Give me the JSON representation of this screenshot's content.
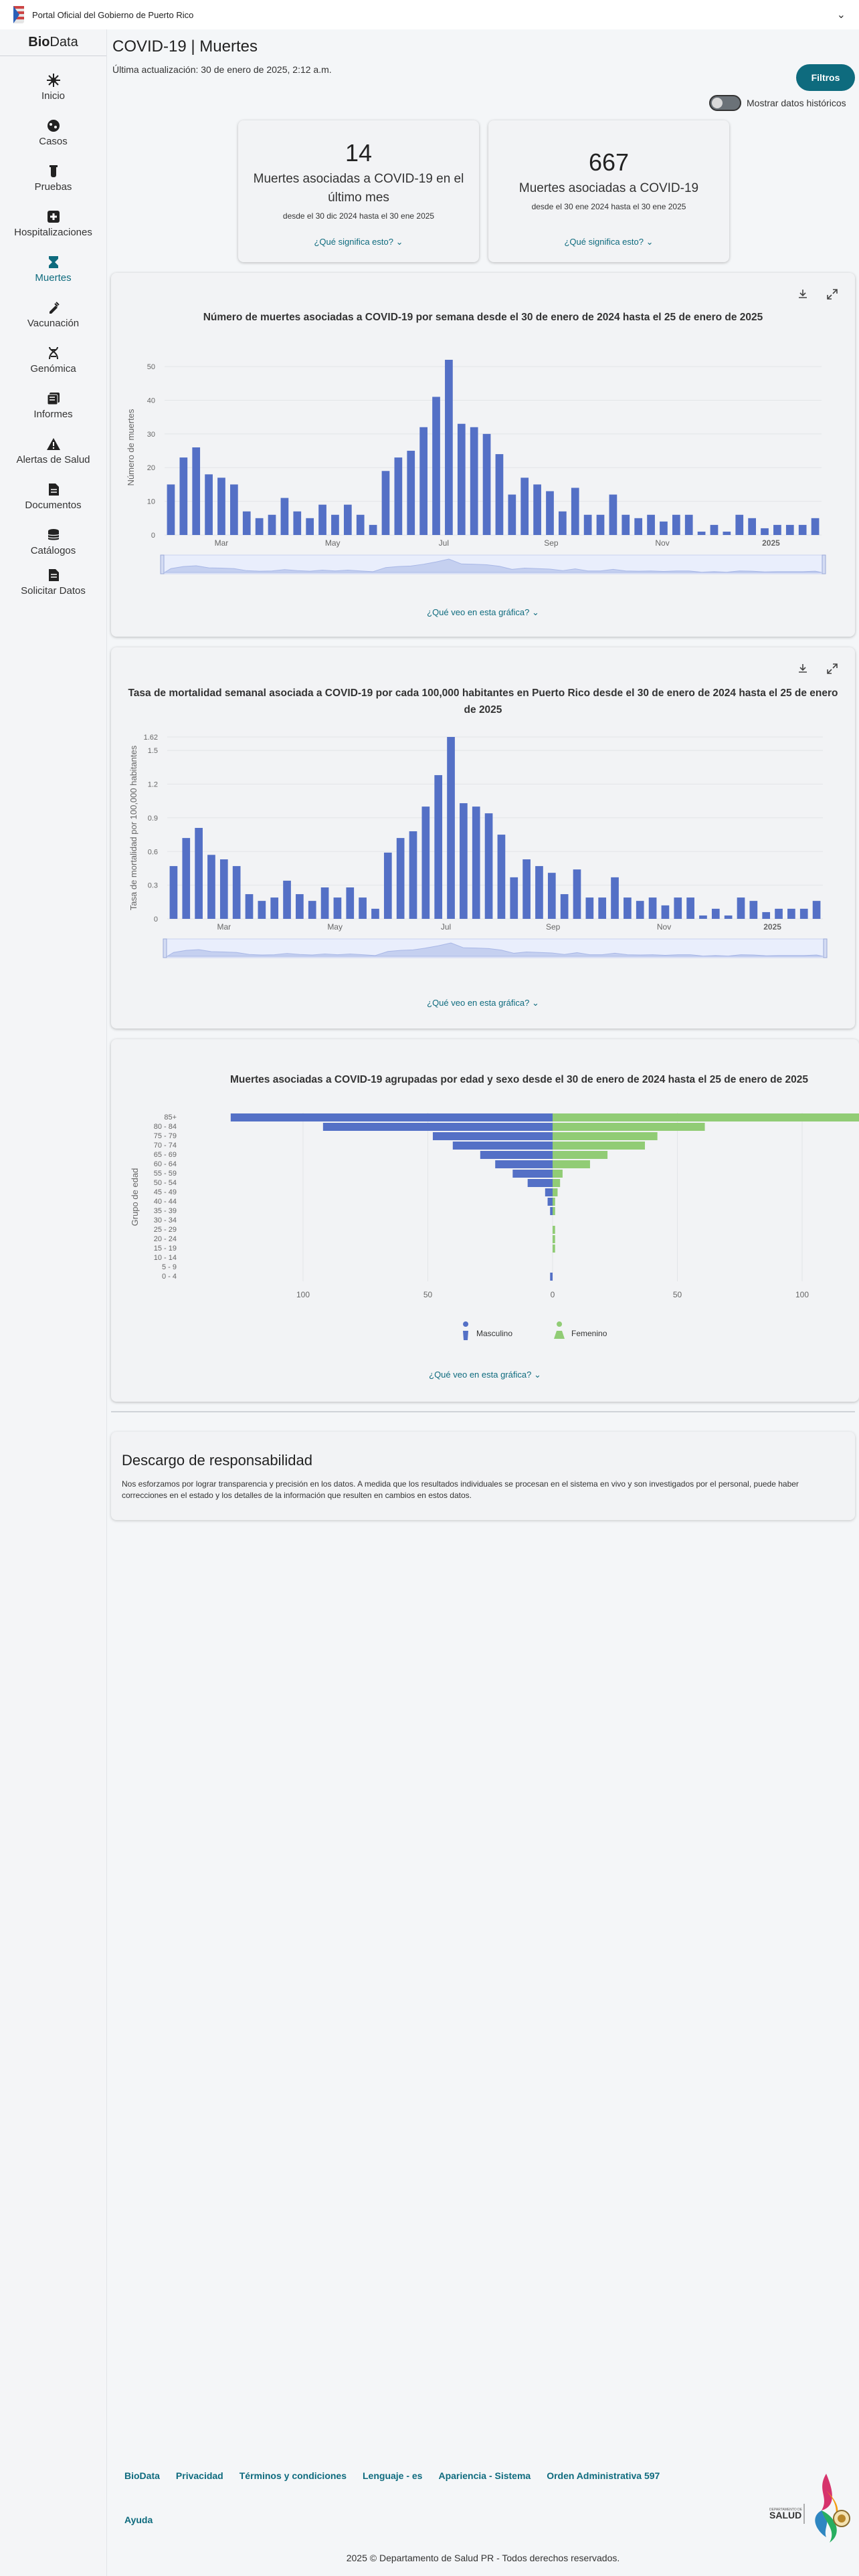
{
  "topbar": {
    "portal": "Portal Oficial del Gobierno de Puerto Rico"
  },
  "sidebar": {
    "brand_bold": "Bio",
    "brand_rest": "Data",
    "items": [
      {
        "label": "Inicio",
        "icon": "virus-icon"
      },
      {
        "label": "Casos",
        "icon": "cases-icon"
      },
      {
        "label": "Pruebas",
        "icon": "test-tube-icon"
      },
      {
        "label": "Hospitalizaciones",
        "icon": "hospital-icon"
      },
      {
        "label": "Muertes",
        "icon": "hourglass-icon"
      },
      {
        "label": "Vacunación",
        "icon": "vaccine-icon"
      },
      {
        "label": "Genómica",
        "icon": "dna-icon"
      },
      {
        "label": "Informes",
        "icon": "reports-icon"
      },
      {
        "label": "Alertas de Salud",
        "icon": "warning-icon"
      },
      {
        "label": "Documentos",
        "icon": "document-icon"
      },
      {
        "label": "Catálogos",
        "icon": "database-icon"
      },
      {
        "label": "Solicitar Datos",
        "icon": "request-icon"
      }
    ]
  },
  "page": {
    "title": "COVID-19 | Muertes",
    "updated": "Última actualización: 30 de enero de 2025, 2:12 a.m.",
    "filters": "Filtros",
    "toggle": "Mostrar datos históricos"
  },
  "stats": [
    {
      "value": "14",
      "label": "Muertes asociadas a COVID-19 en el último mes",
      "range": "desde el 30 dic 2024 hasta el 30 ene 2025",
      "link": "¿Qué significa esto?"
    },
    {
      "value": "667",
      "label": "Muertes asociadas a COVID-19",
      "range": "desde el 30 ene 2024 hasta el 30 ene 2025",
      "link": "¿Qué significa esto?"
    }
  ],
  "help_link": "¿Qué veo en esta gráfica?",
  "disclaimer": {
    "title": "Descargo de responsabilidad",
    "text": "Nos esforzamos por lograr transparencia y precisión en los datos. A medida que los resultados individuales se procesan en el sistema en vivo y son investigados por el personal, puede haber correcciones en el estado y los detalles de la información que resulten en cambios en estos datos."
  },
  "footer": {
    "links": [
      "BioData",
      "Privacidad",
      "Términos y condiciones",
      "Lenguaje - es",
      "Apariencia - Sistema",
      "Orden Administrativa 597"
    ],
    "help": "Ayuda",
    "copyright": "2025 © Departamento de Salud PR - Todos derechos reservados.",
    "logo_text": "SALUD"
  },
  "colors": {
    "accent": "#0e6b7e",
    "bar": "#5470c6",
    "female": "#91cc75"
  },
  "chart_data": [
    {
      "type": "bar",
      "title": "Número de muertes asociadas a COVID-19 por semana desde el 30 de enero de 2024 hasta el 25 de enero de 2025",
      "ylabel": "Número de muertes",
      "ylim": [
        0,
        52
      ],
      "yticks": [
        0,
        10,
        20,
        30,
        40,
        50
      ],
      "xticks": [
        "Mar",
        "May",
        "Jul",
        "Sep",
        "Nov",
        "2025"
      ],
      "values": [
        15,
        23,
        26,
        18,
        17,
        15,
        7,
        5,
        6,
        11,
        7,
        5,
        9,
        6,
        9,
        6,
        3,
        19,
        23,
        25,
        32,
        41,
        52,
        33,
        32,
        30,
        24,
        12,
        17,
        15,
        13,
        7,
        14,
        6,
        6,
        12,
        6,
        5,
        6,
        4,
        6,
        6,
        1,
        3,
        1,
        6,
        5,
        2,
        3,
        3,
        3,
        5
      ]
    },
    {
      "type": "bar",
      "title": "Tasa de mortalidad semanal asociada a COVID-19 por cada 100,000 habitantes en Puerto Rico desde el 30 de enero de 2024 hasta el 25 de enero de 2025",
      "ylabel": "Tasa de mortalidad por 100,000 habitantes",
      "ylim": [
        0,
        1.62
      ],
      "yticks": [
        "0",
        "0.3",
        "0.6",
        "0.9",
        "1.2",
        "1.5",
        "1.62"
      ],
      "xticks": [
        "Mar",
        "May",
        "Jul",
        "Sep",
        "Nov",
        "2025"
      ],
      "values": [
        0.47,
        0.72,
        0.81,
        0.57,
        0.53,
        0.47,
        0.22,
        0.16,
        0.19,
        0.34,
        0.22,
        0.16,
        0.28,
        0.19,
        0.28,
        0.19,
        0.09,
        0.59,
        0.72,
        0.78,
        1.0,
        1.28,
        1.62,
        1.03,
        1.0,
        0.94,
        0.75,
        0.37,
        0.53,
        0.47,
        0.41,
        0.22,
        0.44,
        0.19,
        0.19,
        0.37,
        0.19,
        0.16,
        0.19,
        0.12,
        0.19,
        0.19,
        0.03,
        0.09,
        0.03,
        0.19,
        0.16,
        0.06,
        0.09,
        0.09,
        0.09,
        0.16
      ]
    },
    {
      "type": "bar",
      "title": "Muertes asociadas a COVID-19 agrupadas por edad y sexo desde el 30 de enero de 2024 hasta el 25 de enero de 2025",
      "ylabel": "Grupo de edad",
      "xticks": [
        "100",
        "50",
        "0",
        "50",
        "100"
      ],
      "categories": [
        "85+",
        "80 - 84",
        "75 - 79",
        "70 - 74",
        "65 - 69",
        "60 - 64",
        "55 - 59",
        "50 - 54",
        "45 - 49",
        "40 - 44",
        "35 - 39",
        "30 - 34",
        "25 - 29",
        "20 - 24",
        "15 - 19",
        "10 - 14",
        "5 - 9",
        "0 - 4"
      ],
      "series": [
        {
          "name": "Masculino",
          "values": [
            129,
            92,
            48,
            40,
            29,
            23,
            16,
            10,
            3,
            2,
            1,
            0,
            0,
            0,
            0,
            0,
            0,
            1
          ]
        },
        {
          "name": "Femenino",
          "values": [
            140,
            61,
            42,
            37,
            22,
            15,
            4,
            3,
            2,
            1,
            1,
            0,
            1,
            1,
            1,
            0,
            0,
            0
          ]
        }
      ]
    }
  ]
}
